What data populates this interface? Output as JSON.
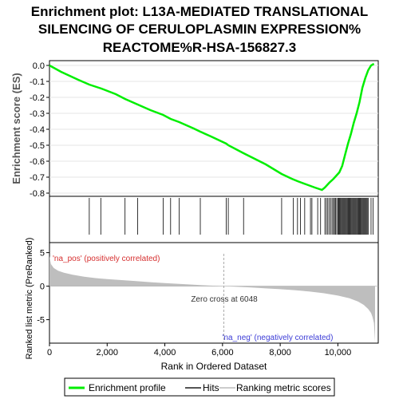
{
  "title_lines": [
    "Enrichment plot: L13A-MEDIATED TRANSLATIONAL",
    "SILENCING OF CERULOPLASMIN EXPRESSION%",
    "REACTOME%R-HSA-156827.3"
  ],
  "colors": {
    "es_line": "#00ee00",
    "hits": "#000000",
    "metric_fill": "#bebebe",
    "pos_label": "#d62f2f",
    "neg_label": "#3b3bd6",
    "zero_line": "#aaaaaa"
  },
  "chart_data": [
    {
      "type": "line",
      "name": "es_panel",
      "ylabel": "Enrichment score (ES)",
      "xlim": [
        0,
        11400
      ],
      "ylim": [
        -0.82,
        0.03
      ],
      "yticks": [
        0.0,
        -0.1,
        -0.2,
        -0.3,
        -0.4,
        -0.5,
        -0.6,
        -0.7,
        -0.8
      ],
      "ytick_labels": [
        "0.0",
        "-0.1",
        "-0.2",
        "-0.3",
        "-0.4",
        "-0.5",
        "-0.6",
        "-0.7",
        "-0.8"
      ],
      "grid": true,
      "series": [
        {
          "x": [
            0,
            400,
            1000,
            1380,
            1800,
            2300,
            2620,
            3060,
            3500,
            3940,
            4200,
            4500,
            5000,
            5230,
            5600,
            6130,
            6200,
            6730,
            7500,
            8050,
            8400,
            8600,
            8900,
            9200,
            9450,
            9550,
            9700,
            9850,
            9950,
            10050,
            10150,
            10250,
            10350,
            10450,
            10550,
            10650,
            10750,
            10850,
            10950,
            11050,
            11150,
            11250
          ],
          "y": [
            0.0,
            -0.04,
            -0.09,
            -0.12,
            -0.145,
            -0.18,
            -0.21,
            -0.245,
            -0.28,
            -0.31,
            -0.335,
            -0.355,
            -0.395,
            -0.415,
            -0.445,
            -0.49,
            -0.5,
            -0.55,
            -0.62,
            -0.68,
            -0.71,
            -0.725,
            -0.745,
            -0.765,
            -0.78,
            -0.765,
            -0.735,
            -0.71,
            -0.69,
            -0.67,
            -0.63,
            -0.56,
            -0.49,
            -0.43,
            -0.36,
            -0.3,
            -0.23,
            -0.14,
            -0.08,
            -0.03,
            0.0,
            0.01
          ]
        }
      ]
    },
    {
      "type": "hits",
      "name": "hit_ticks",
      "positions": [
        1380,
        1780,
        2620,
        3060,
        3940,
        4200,
        4500,
        5230,
        6130,
        6200,
        6730,
        8050,
        8450,
        8600,
        8700,
        8850,
        9050,
        9100,
        9300,
        9400,
        9550,
        9600,
        9650,
        9700,
        9750,
        9800,
        9850,
        9880,
        9920,
        9960,
        10000,
        10030,
        10060,
        10090,
        10120,
        10150,
        10180,
        10210,
        10240,
        10270,
        10300,
        10330,
        10360,
        10390,
        10420,
        10450,
        10480,
        10510,
        10540,
        10570,
        10600,
        10630,
        10660,
        10690,
        10720,
        10750,
        10780,
        10810,
        10840,
        10870,
        10900,
        10930,
        10960,
        10990,
        11020,
        11060,
        11150,
        11220
      ]
    },
    {
      "type": "area",
      "name": "ranked_metric",
      "ylabel": "Ranked list metric (PreRanked)",
      "xlabel": "Rank in Ordered Dataset",
      "xlim": [
        0,
        11400
      ],
      "ylim": [
        -8.5,
        6.5
      ],
      "yticks": [
        5,
        0,
        -5
      ],
      "ytick_labels": [
        "5",
        "0",
        "-5"
      ],
      "xticks": [
        0,
        2000,
        4000,
        6000,
        8000,
        10000
      ],
      "xtick_labels": [
        "0",
        "2,000",
        "4,000",
        "6,000",
        "8,000",
        "10,000"
      ],
      "x": [
        0,
        50,
        150,
        300,
        500,
        800,
        1200,
        1600,
        2000,
        2500,
        3000,
        3500,
        4000,
        4500,
        5000,
        5500,
        6048,
        6500,
        7000,
        7500,
        8000,
        8500,
        9000,
        9500,
        10000,
        10400,
        10700,
        10900,
        11050,
        11150,
        11200,
        11250,
        11290
      ],
      "values": [
        4.5,
        3.3,
        2.7,
        2.3,
        2.0,
        1.7,
        1.4,
        1.2,
        1.05,
        0.9,
        0.75,
        0.6,
        0.45,
        0.33,
        0.22,
        0.1,
        0.0,
        -0.1,
        -0.2,
        -0.33,
        -0.45,
        -0.6,
        -0.8,
        -1.05,
        -1.4,
        -1.8,
        -2.3,
        -2.8,
        -3.4,
        -4.0,
        -4.6,
        -5.5,
        -8.3
      ],
      "zero_cross": 6048
    }
  ],
  "annotations": {
    "pos_label": "'na_pos' (positively correlated)",
    "neg_label": "'na_neg' (negatively correlated)",
    "zero_cross_label": "Zero cross at 6048"
  },
  "legend": {
    "items": [
      {
        "label": "Enrichment profile",
        "color": "#00ee00"
      },
      {
        "label": "Hits",
        "color": "#555555"
      },
      {
        "label": "Ranking metric scores",
        "color": "#cccccc"
      }
    ]
  }
}
